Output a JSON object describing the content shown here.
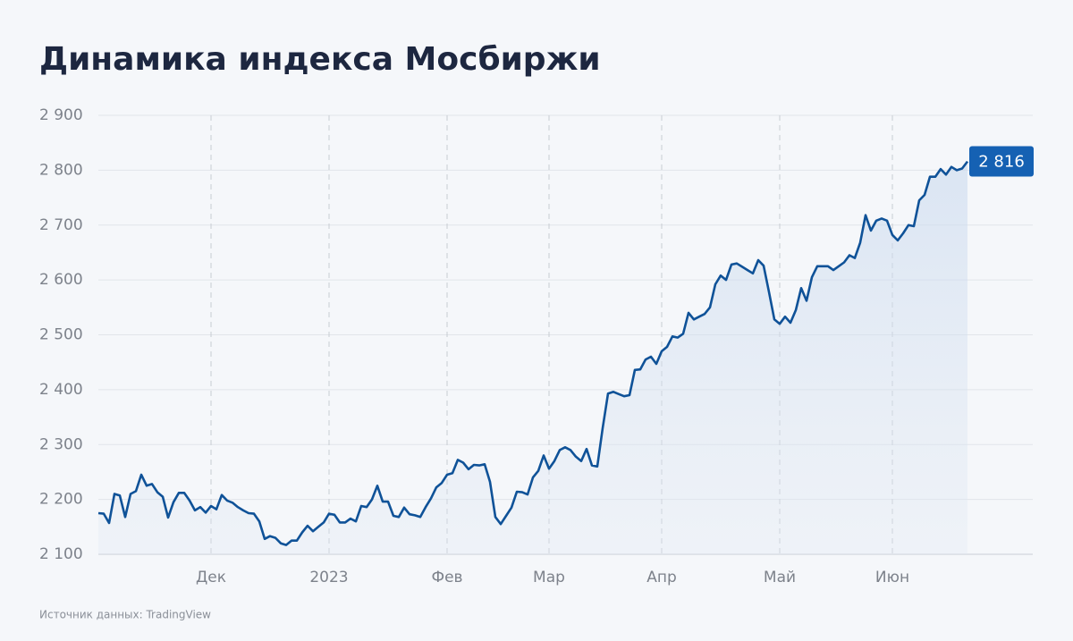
{
  "chart_data": {
    "type": "line",
    "title": "Динамика индекса Мосбиржи",
    "source": "Источник данных: TradingView",
    "categories": [
      null,
      null,
      null,
      null,
      null,
      null,
      null,
      null,
      null,
      null,
      null,
      null,
      null,
      null,
      null,
      null,
      null,
      null,
      null,
      null,
      null,
      "Дек",
      null,
      null,
      null,
      null,
      null,
      null,
      null,
      null,
      null,
      null,
      null,
      null,
      null,
      null,
      null,
      null,
      null,
      null,
      null,
      null,
      null,
      "2023",
      null,
      null,
      null,
      null,
      null,
      null,
      null,
      null,
      null,
      null,
      null,
      null,
      null,
      null,
      null,
      null,
      null,
      null,
      null,
      null,
      null,
      "Фев",
      null,
      null,
      null,
      null,
      null,
      null,
      null,
      null,
      null,
      null,
      null,
      null,
      null,
      null,
      null,
      null,
      null,
      null,
      "Мар",
      null,
      null,
      null,
      null,
      null,
      null,
      null,
      null,
      null,
      null,
      null,
      null,
      null,
      null,
      null,
      null,
      null,
      null,
      null,
      null,
      "Апр",
      null,
      null,
      null,
      null,
      null,
      null,
      null,
      null,
      null,
      null,
      null,
      null,
      null,
      null,
      null,
      null,
      null,
      null,
      null,
      null,
      null,
      "Май",
      null,
      null,
      null,
      null,
      null,
      null,
      null,
      null,
      null,
      null,
      null,
      null,
      null,
      null,
      null,
      null,
      null,
      null,
      null,
      null,
      "Июн",
      null,
      null,
      null,
      null,
      null,
      null,
      null,
      null,
      null,
      null,
      null,
      null,
      null,
      null
    ],
    "series": [
      {
        "name": "Индекс Мосбиржи",
        "color": "#0f5298",
        "values": [
          2175,
          2174,
          2157,
          2210,
          2207,
          2168,
          2210,
          2215,
          2245,
          2225,
          2228,
          2213,
          2205,
          2167,
          2195,
          2212,
          2212,
          2198,
          2180,
          2186,
          2176,
          2188,
          2182,
          2208,
          2198,
          2194,
          2186,
          2180,
          2175,
          2174,
          2160,
          2128,
          2133,
          2130,
          2120,
          2117,
          2125,
          2125,
          2140,
          2152,
          2142,
          2150,
          2158,
          2174,
          2172,
          2158,
          2158,
          2165,
          2160,
          2188,
          2186,
          2200,
          2225,
          2196,
          2196,
          2170,
          2168,
          2185,
          2173,
          2171,
          2168,
          2186,
          2202,
          2222,
          2230,
          2245,
          2248,
          2272,
          2267,
          2255,
          2263,
          2262,
          2264,
          2232,
          2168,
          2155,
          2170,
          2185,
          2214,
          2213,
          2209,
          2240,
          2252,
          2280,
          2256,
          2270,
          2290,
          2295,
          2290,
          2278,
          2270,
          2292,
          2262,
          2260,
          2330,
          2393,
          2396,
          2392,
          2388,
          2390,
          2436,
          2437,
          2455,
          2460,
          2447,
          2470,
          2478,
          2497,
          2495,
          2502,
          2540,
          2528,
          2533,
          2538,
          2550,
          2592,
          2608,
          2600,
          2628,
          2630,
          2624,
          2618,
          2612,
          2636,
          2626,
          2578,
          2528,
          2520,
          2533,
          2522,
          2545,
          2585,
          2562,
          2605,
          2625,
          2625,
          2625,
          2618,
          2625,
          2632,
          2645,
          2640,
          2668,
          2718,
          2690,
          2708,
          2712,
          2708,
          2682,
          2672,
          2685,
          2700,
          2698,
          2745,
          2755,
          2788,
          2788,
          2802,
          2792,
          2806,
          2800,
          2803,
          2816
        ],
        "value_labels": [
          null,
          null,
          null,
          null,
          null,
          null,
          null,
          null,
          null,
          null,
          null,
          null,
          null,
          null,
          null,
          null,
          null,
          null,
          null,
          null,
          null,
          null,
          null,
          null,
          null,
          null,
          null,
          null,
          null,
          null,
          null,
          null,
          null,
          null,
          null,
          null,
          null,
          null,
          null,
          null,
          null,
          null,
          null,
          null,
          null,
          null,
          null,
          null,
          null,
          null,
          null,
          null,
          null,
          null,
          null,
          null,
          null,
          null,
          null,
          null,
          null,
          null,
          null,
          null,
          null,
          null,
          null,
          null,
          null,
          null,
          null,
          null,
          null,
          null,
          null,
          null,
          null,
          null,
          null,
          null,
          null,
          null,
          null,
          null,
          null,
          null,
          null,
          null,
          null,
          null,
          null,
          null,
          null,
          null,
          null,
          null,
          null,
          null,
          null,
          null,
          null,
          null,
          null,
          null,
          null,
          null,
          null,
          null,
          null,
          null,
          null,
          null,
          null,
          null,
          null,
          null,
          null,
          null,
          null,
          null,
          null,
          null,
          null,
          null,
          null,
          null,
          null,
          null,
          null,
          null,
          null,
          null,
          null,
          null,
          null,
          null,
          null,
          null,
          null,
          null,
          null,
          null,
          null,
          null,
          null,
          null,
          null,
          null,
          null,
          null,
          null,
          null,
          null,
          null,
          null,
          null,
          null,
          null,
          null,
          null,
          null,
          null,
          "2 816"
        ]
      }
    ],
    "ylim": [
      2100,
      2900
    ],
    "yticks": [
      {
        "value": 2100,
        "label": "2 100"
      },
      {
        "value": 2200,
        "label": "2 200"
      },
      {
        "value": 2300,
        "label": "2 300"
      },
      {
        "value": 2400,
        "label": "2 400"
      },
      {
        "value": 2500,
        "label": "2 500"
      },
      {
        "value": 2600,
        "label": "2 600"
      },
      {
        "value": 2700,
        "label": "2 700"
      },
      {
        "value": 2800,
        "label": "2 800"
      },
      {
        "value": 2900,
        "label": "2 900"
      }
    ],
    "grid": true
  }
}
